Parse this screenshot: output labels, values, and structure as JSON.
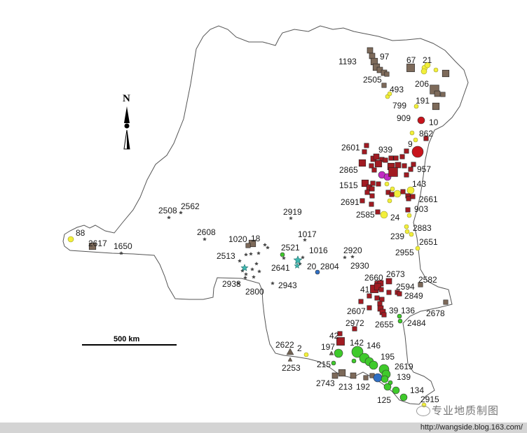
{
  "map": {
    "north_label": "N",
    "scale_label": "500 km",
    "site_labels": [
      "1193",
      "97",
      "67",
      "21",
      "2505",
      "493",
      "206",
      "799",
      "191",
      "909",
      "10",
      "862",
      "9",
      "2601",
      "939",
      "2865",
      "957",
      "1515",
      "143",
      "2691",
      "2661",
      "903",
      "2585",
      "24",
      "2883",
      "239",
      "2651",
      "2955",
      "2920",
      "2930",
      "2919",
      "2508",
      "2562",
      "2608",
      "1017",
      "1020",
      "18",
      "2521",
      "1016",
      "2513",
      "2641",
      "20",
      "2804",
      "2943",
      "2938",
      "2800",
      "88",
      "2617",
      "1650",
      "2660",
      "2673",
      "2582",
      "41",
      "2594",
      "2849",
      "2607",
      "39",
      "136",
      "2678",
      "2972",
      "2655",
      "2484",
      "42",
      "142",
      "146",
      "197",
      "2622",
      "2",
      "195",
      "2619",
      "215",
      "2253",
      "139",
      "2743",
      "213",
      "192",
      "134",
      "125",
      "2915"
    ],
    "marker_colors": {
      "red_square": "#a11b22",
      "brown_square": "#7d6a5a",
      "yellow_circle": "#f2ef3a",
      "green_circle": "#3fca2b",
      "red_circle": "#c8141c",
      "magenta_circle": "#c22bc4",
      "blue_circle": "#2f6fc4",
      "star": "#444444",
      "teal_star": "#3fb7b0",
      "triangle": "#6f6152"
    }
  },
  "watermark": {
    "text": "专业地质制图"
  },
  "footer": {
    "url": "http://wangside.blog.163.com/"
  }
}
